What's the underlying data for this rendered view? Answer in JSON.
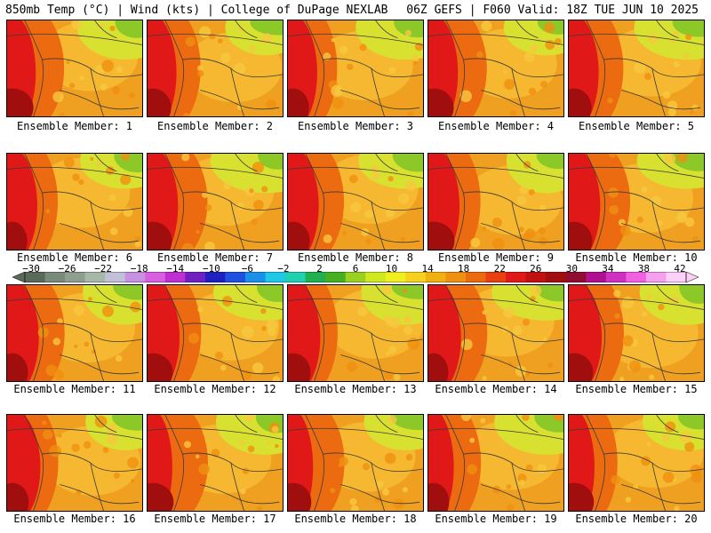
{
  "header": {
    "left": "850mb Temp (°C) | Wind (kts) | College of DuPage NEXLAB",
    "right": "06Z GEFS | F060 Valid: 18Z TUE JUN 10 2025"
  },
  "panels": [
    {
      "label": "Ensemble Member: 1"
    },
    {
      "label": "Ensemble Member: 2"
    },
    {
      "label": "Ensemble Member: 3"
    },
    {
      "label": "Ensemble Member: 4"
    },
    {
      "label": "Ensemble Member: 5"
    },
    {
      "label": "Ensemble Member: 6"
    },
    {
      "label": "Ensemble Member: 7"
    },
    {
      "label": "Ensemble Member: 8"
    },
    {
      "label": "Ensemble Member: 9"
    },
    {
      "label": "Ensemble Member: 10"
    },
    {
      "label": "Ensemble Member: 11"
    },
    {
      "label": "Ensemble Member: 12"
    },
    {
      "label": "Ensemble Member: 13"
    },
    {
      "label": "Ensemble Member: 14"
    },
    {
      "label": "Ensemble Member: 15"
    },
    {
      "label": "Ensemble Member: 16"
    },
    {
      "label": "Ensemble Member: 17"
    },
    {
      "label": "Ensemble Member: 18"
    },
    {
      "label": "Ensemble Member: 19"
    },
    {
      "label": "Ensemble Member: 20"
    }
  ],
  "colorbar": {
    "ticks": [
      "-30",
      "-26",
      "-22",
      "-18",
      "-14",
      "-10",
      "-6",
      "-2",
      "2",
      "6",
      "10",
      "14",
      "18",
      "22",
      "26",
      "30",
      "34",
      "38",
      "42"
    ],
    "colors": [
      "#5a6a5a",
      "#7a8a7a",
      "#8f9e8f",
      "#a8b8a8",
      "#c0c0d8",
      "#c890e0",
      "#d860e0",
      "#c030d0",
      "#7020c0",
      "#2020c0",
      "#2050e0",
      "#1a90e8",
      "#20c8e8",
      "#20d0b0",
      "#20b050",
      "#48b020",
      "#9ad020",
      "#d0e820",
      "#f0f020",
      "#f8d020",
      "#f0b010",
      "#f09010",
      "#ec6a10",
      "#e84010",
      "#e01818",
      "#c01010",
      "#a00e0e",
      "#900c30",
      "#b01090",
      "#d030c0",
      "#f060e0",
      "#f8a0f0",
      "#fcd0f8"
    ]
  }
}
